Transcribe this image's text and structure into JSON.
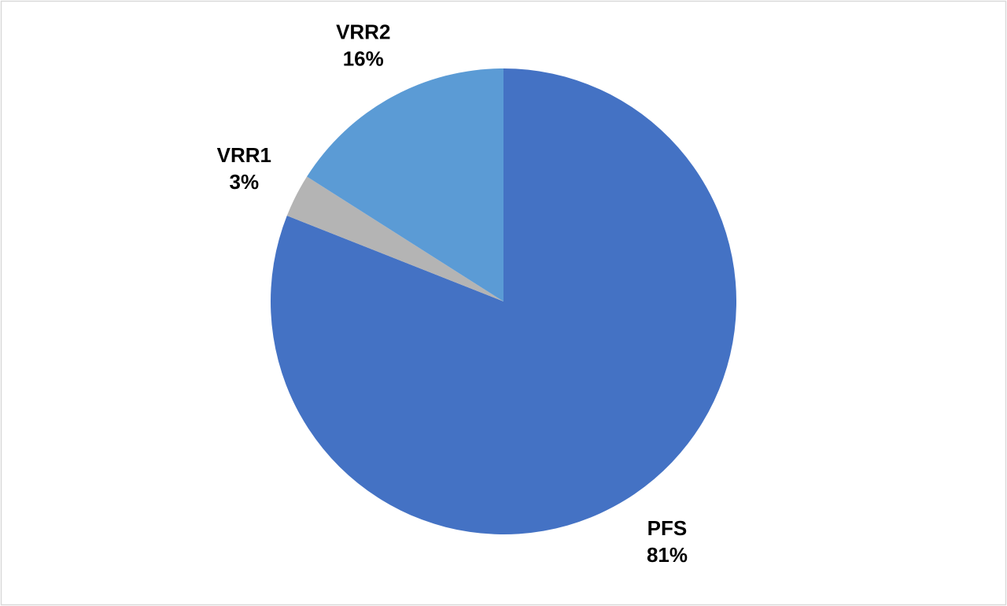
{
  "chart_data": {
    "type": "pie",
    "categories": [
      "PFS",
      "VRR1",
      "VRR2"
    ],
    "values": [
      81,
      3,
      16
    ],
    "value_labels": [
      "81%",
      "3%",
      "16%"
    ],
    "colors": [
      "#4472c4",
      "#b4b4b4",
      "#5b9bd5"
    ]
  }
}
